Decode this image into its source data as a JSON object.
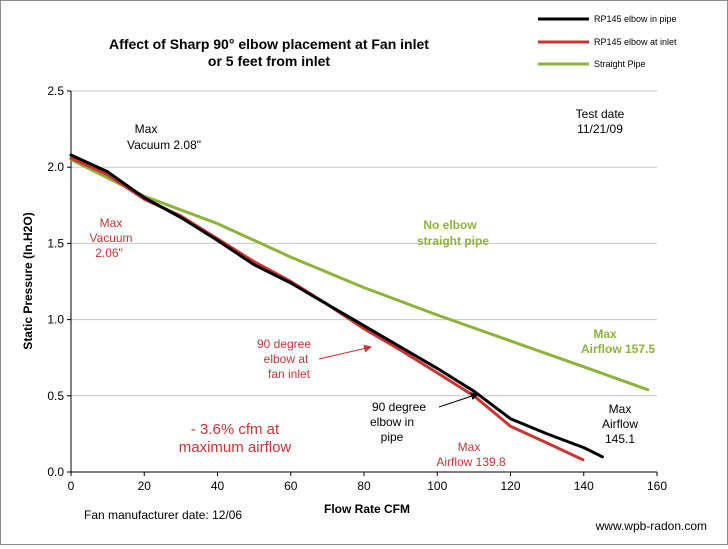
{
  "chart_data": {
    "type": "line",
    "title": [
      "Affect of Sharp 90° elbow placement at Fan inlet",
      "or 5 feet from inlet"
    ],
    "xlabel": "Flow Rate  CFM",
    "ylabel": "Static Pressure (In.H2O)",
    "xlim": [
      0,
      160
    ],
    "ylim": [
      0,
      2.5
    ],
    "x_ticks": [
      "0",
      "20",
      "40",
      "60",
      "80",
      "100",
      "120",
      "140",
      "160"
    ],
    "y_ticks": [
      "0.0",
      "0.5",
      "1.0",
      "1.5",
      "2.0",
      "2.5"
    ],
    "x_tick_values": [
      0,
      20,
      40,
      60,
      80,
      100,
      120,
      140,
      160
    ],
    "y_tick_values": [
      0,
      0.5,
      1.0,
      1.5,
      2.0,
      2.5
    ],
    "grid": "horizontal",
    "legend_position": "top-right",
    "series": [
      {
        "name": "RP145 elbow in pipe",
        "color": "#000000",
        "points": [
          [
            0,
            2.08
          ],
          [
            10,
            1.97
          ],
          [
            20,
            1.8
          ],
          [
            30,
            1.67
          ],
          [
            40,
            1.52
          ],
          [
            50,
            1.36
          ],
          [
            60,
            1.24
          ],
          [
            70,
            1.1
          ],
          [
            80,
            0.96
          ],
          [
            90,
            0.82
          ],
          [
            100,
            0.68
          ],
          [
            110,
            0.53
          ],
          [
            115,
            0.44
          ],
          [
            120,
            0.35
          ],
          [
            130,
            0.25
          ],
          [
            140,
            0.16
          ],
          [
            145.1,
            0.1
          ]
        ]
      },
      {
        "name": "RP145 elbow at inlet",
        "color": "#cc3333",
        "points": [
          [
            0,
            2.06
          ],
          [
            10,
            1.95
          ],
          [
            20,
            1.79
          ],
          [
            30,
            1.68
          ],
          [
            40,
            1.53
          ],
          [
            50,
            1.38
          ],
          [
            60,
            1.25
          ],
          [
            70,
            1.1
          ],
          [
            80,
            0.94
          ],
          [
            90,
            0.8
          ],
          [
            100,
            0.65
          ],
          [
            110,
            0.5
          ],
          [
            115,
            0.4
          ],
          [
            120,
            0.3
          ],
          [
            130,
            0.19
          ],
          [
            139.8,
            0.08
          ]
        ]
      },
      {
        "name": "Straight Pipe",
        "color": "#8db33a",
        "points": [
          [
            0,
            2.05
          ],
          [
            20,
            1.81
          ],
          [
            40,
            1.63
          ],
          [
            60,
            1.41
          ],
          [
            80,
            1.21
          ],
          [
            100,
            1.03
          ],
          [
            120,
            0.86
          ],
          [
            140,
            0.69
          ],
          [
            157.5,
            0.54
          ]
        ]
      }
    ],
    "annotations": {
      "test_date": [
        "Test date",
        "11/21/09"
      ],
      "max_vacuum_black": [
        "Max",
        "Vacuum  2.08\""
      ],
      "max_vacuum_red": [
        "Max",
        "Vacuum",
        "2.06\""
      ],
      "no_elbow": [
        "No elbow",
        "straight pipe"
      ],
      "max_airflow_green": [
        "Max",
        "Airflow  157.5"
      ],
      "elbow_at_inlet": [
        "90 degree",
        "elbow at",
        "fan inlet"
      ],
      "elbow_in_pipe": [
        "90 degree",
        "elbow in",
        "pipe"
      ],
      "cfm_drop": [
        "- 3.6% cfm at",
        "maximum airflow"
      ],
      "max_airflow_red": [
        "Max",
        "Airflow  139.8"
      ],
      "max_airflow_black": [
        "Max",
        "Airflow",
        "145.1"
      ],
      "manufacturer_date": "Fan manufacturer date: 12/06",
      "website": "www.wpb-radon.com"
    }
  }
}
